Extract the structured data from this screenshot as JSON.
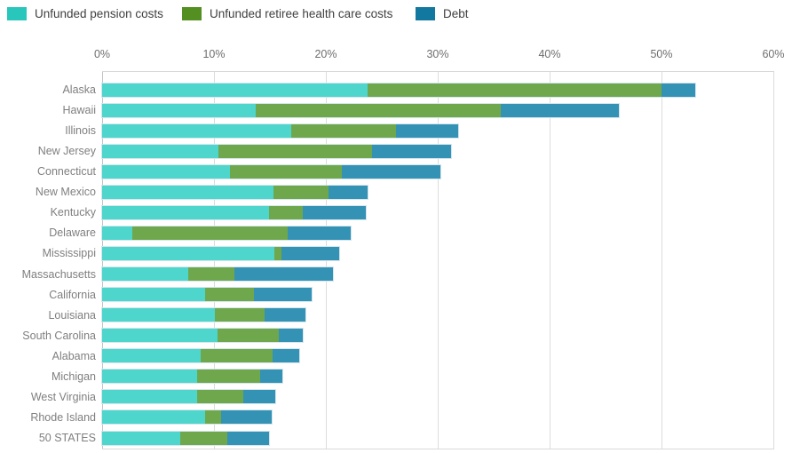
{
  "chart_data": {
    "type": "bar",
    "orientation": "horizontal",
    "stacked": true,
    "grid": true,
    "legend_position": "top-left",
    "xlim": [
      0,
      60
    ],
    "x_ticks": [
      "0%",
      "10%",
      "20%",
      "30%",
      "40%",
      "50%",
      "60%"
    ],
    "categories": [
      "Alaska",
      "Hawaii",
      "Illinois",
      "New Jersey",
      "Connecticut",
      "New Mexico",
      "Kentucky",
      "Delaware",
      "Mississippi",
      "Massachusetts",
      "California",
      "Louisiana",
      "South Carolina",
      "Alabama",
      "Michigan",
      "West Virginia",
      "Rhode Island",
      "50 STATES"
    ],
    "series": [
      {
        "name": "Unfunded pension costs",
        "slug": "unfunded-pension-costs",
        "bar_color": "#4ed5cc",
        "legend_color": "#29c6bc",
        "values": [
          23.7,
          13.7,
          16.9,
          10.4,
          11.4,
          15.3,
          14.9,
          2.7,
          15.4,
          7.7,
          9.2,
          10.1,
          10.3,
          8.8,
          8.5,
          8.5,
          9.2,
          7.0
        ]
      },
      {
        "name": "Unfunded retiree health care costs",
        "slug": "unfunded-retiree-health-care-costs",
        "bar_color": "#6fa84c",
        "legend_color": "#538f21",
        "values": [
          26.3,
          21.9,
          9.4,
          13.7,
          10.0,
          4.9,
          3.0,
          13.9,
          0.6,
          4.1,
          4.4,
          4.4,
          5.5,
          6.4,
          5.6,
          4.1,
          1.4,
          4.2
        ]
      },
      {
        "name": "Debt",
        "slug": "debt",
        "bar_color": "#3492b4",
        "legend_color": "#13789f",
        "values": [
          3.0,
          10.6,
          5.5,
          7.1,
          8.8,
          3.5,
          5.7,
          5.6,
          5.2,
          8.8,
          5.1,
          3.7,
          2.1,
          2.4,
          2.0,
          2.9,
          4.6,
          3.7
        ]
      }
    ]
  },
  "colors": {
    "gridline": "#dcdcdc",
    "zero_axis": "#c3c3c3",
    "tick_text": "#6e6e6e",
    "category_text": "#7f7f7f",
    "legend_text": "#3f3f3f"
  }
}
